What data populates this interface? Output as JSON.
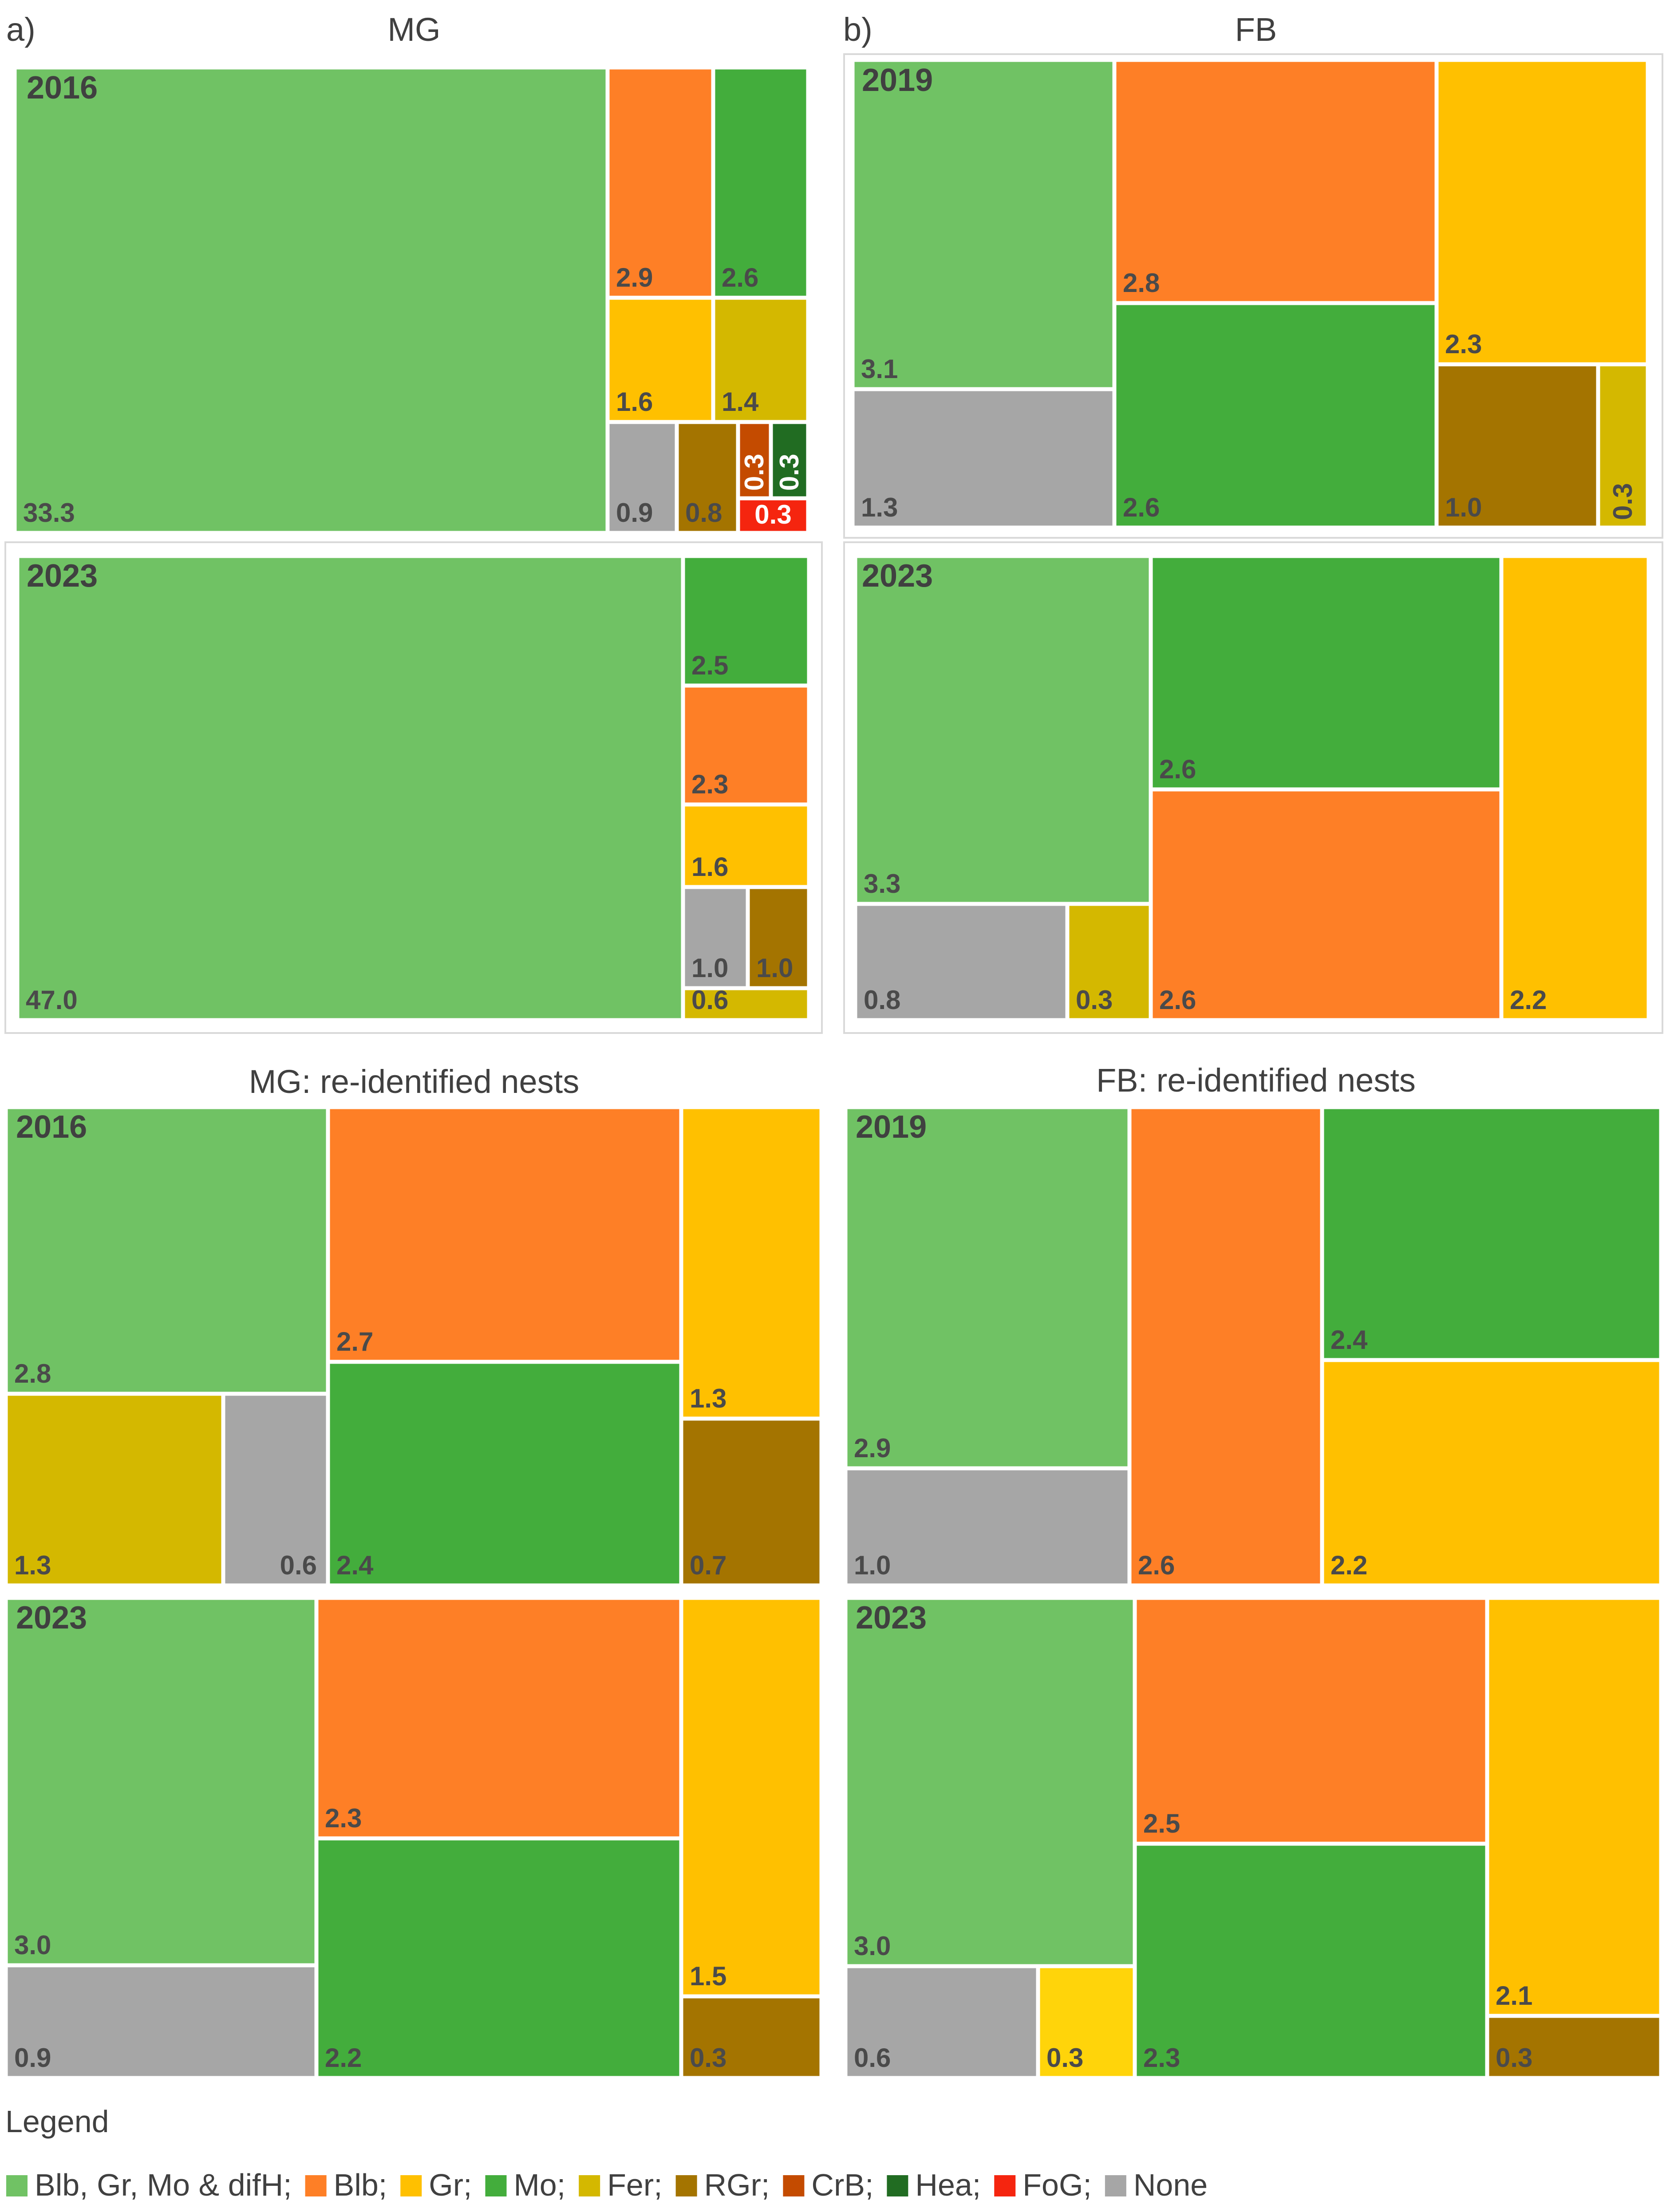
{
  "legend": {
    "title": "Legend",
    "items": [
      {
        "key": "BGM",
        "label": "Blb, Gr, Mo & difH;",
        "color": "#70c264"
      },
      {
        "key": "Blb",
        "label": "Blb;",
        "color": "#fe7f26"
      },
      {
        "key": "Gr",
        "label": "Gr;",
        "color": "#ffc000"
      },
      {
        "key": "Mo",
        "label": "Mo;",
        "color": "#43ad3c"
      },
      {
        "key": "Fer",
        "label": "Fer;",
        "color": "#d4b800"
      },
      {
        "key": "RGr",
        "label": "RGr;",
        "color": "#a47400"
      },
      {
        "key": "CrB",
        "label": "CrB;",
        "color": "#c44b00"
      },
      {
        "key": "Hea",
        "label": "Hea;",
        "color": "#216c22"
      },
      {
        "key": "FoG",
        "label": "FoG;",
        "color": "#f5250f"
      },
      {
        "key": "None",
        "label": "None",
        "color": "#a6a6a6"
      }
    ]
  },
  "chart_data": [
    {
      "type": "treemap",
      "panel": "a)",
      "title": "MG",
      "subplots": [
        {
          "year": "2016",
          "cells": [
            {
              "cat": "BGM",
              "value": "33.3"
            },
            {
              "cat": "Blb",
              "value": "2.9"
            },
            {
              "cat": "Mo",
              "value": "2.6"
            },
            {
              "cat": "Gr",
              "value": "1.6"
            },
            {
              "cat": "Fer",
              "value": "1.4"
            },
            {
              "cat": "None",
              "value": "0.9"
            },
            {
              "cat": "RGr",
              "value": "0.8"
            },
            {
              "cat": "CrB",
              "value": "0.3"
            },
            {
              "cat": "Hea",
              "value": "0.3"
            },
            {
              "cat": "FoG",
              "value": "0.3"
            }
          ]
        },
        {
          "year": "2023",
          "cells": [
            {
              "cat": "BGM",
              "value": "47.0"
            },
            {
              "cat": "Mo",
              "value": "2.5"
            },
            {
              "cat": "Blb",
              "value": "2.3"
            },
            {
              "cat": "Gr",
              "value": "1.6"
            },
            {
              "cat": "None",
              "value": "1.0"
            },
            {
              "cat": "RGr",
              "value": "1.0"
            },
            {
              "cat": "Fer",
              "value": "0.6"
            }
          ]
        }
      ]
    },
    {
      "type": "treemap",
      "panel": "b)",
      "title": "FB",
      "subplots": [
        {
          "year": "2019",
          "cells": [
            {
              "cat": "BGM",
              "value": "3.1"
            },
            {
              "cat": "Blb",
              "value": "2.8"
            },
            {
              "cat": "Gr",
              "value": "2.3"
            },
            {
              "cat": "None",
              "value": "1.3"
            },
            {
              "cat": "Mo",
              "value": "2.6"
            },
            {
              "cat": "RGr",
              "value": "1.0"
            },
            {
              "cat": "Fer",
              "value": "0.3"
            }
          ]
        },
        {
          "year": "2023",
          "cells": [
            {
              "cat": "BGM",
              "value": "3.3"
            },
            {
              "cat": "Mo",
              "value": "2.6"
            },
            {
              "cat": "Gr",
              "value": "2.2"
            },
            {
              "cat": "Blb",
              "value": "2.6"
            },
            {
              "cat": "None",
              "value": "0.8"
            },
            {
              "cat": "Fer",
              "value": "0.3"
            }
          ]
        }
      ]
    },
    {
      "type": "treemap",
      "panel": "",
      "title": "MG: re-identified nests",
      "subplots": [
        {
          "year": "2016",
          "cells": [
            {
              "cat": "BGM",
              "value": "2.8"
            },
            {
              "cat": "Blb",
              "value": "2.7"
            },
            {
              "cat": "Gr",
              "value": "1.3"
            },
            {
              "cat": "Fer",
              "value": "1.3"
            },
            {
              "cat": "None",
              "value": "0.6"
            },
            {
              "cat": "Mo",
              "value": "2.4"
            },
            {
              "cat": "RGr",
              "value": "0.7"
            }
          ]
        },
        {
          "year": "2023",
          "cells": [
            {
              "cat": "BGM",
              "value": "3.0"
            },
            {
              "cat": "Blb",
              "value": "2.3"
            },
            {
              "cat": "Gr",
              "value": "1.5"
            },
            {
              "cat": "None",
              "value": "0.9"
            },
            {
              "cat": "Mo",
              "value": "2.2"
            },
            {
              "cat": "RGr",
              "value": "0.3"
            }
          ]
        }
      ]
    },
    {
      "type": "treemap",
      "panel": "",
      "title": "FB: re-identified nests",
      "subplots": [
        {
          "year": "2019",
          "cells": [
            {
              "cat": "BGM",
              "value": "2.9"
            },
            {
              "cat": "Blb",
              "value": "2.6"
            },
            {
              "cat": "Mo",
              "value": "2.4"
            },
            {
              "cat": "Gr",
              "value": "2.2"
            },
            {
              "cat": "None",
              "value": "1.0"
            }
          ]
        },
        {
          "year": "2023",
          "cells": [
            {
              "cat": "BGM",
              "value": "3.0"
            },
            {
              "cat": "Blb",
              "value": "2.5"
            },
            {
              "cat": "Gr",
              "value": "2.1"
            },
            {
              "cat": "Mo",
              "value": "2.3"
            },
            {
              "cat": "RGr",
              "value": "0.3"
            },
            {
              "cat": "None",
              "value": "0.6"
            },
            {
              "cat": "Gr2",
              "value": "0.3"
            }
          ]
        }
      ]
    }
  ]
}
